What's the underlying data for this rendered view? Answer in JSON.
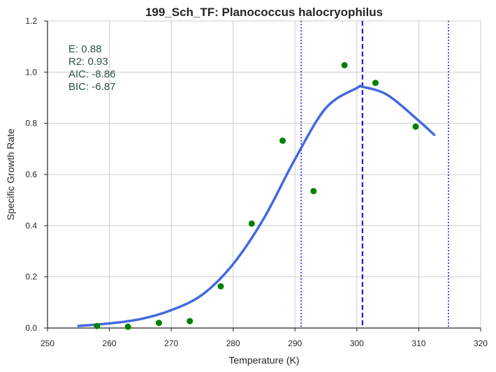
{
  "chart_data": {
    "type": "scatter",
    "title": "199_Sch_TF: Planococcus halocryophilus",
    "xlabel": "Temperature (K)",
    "ylabel": "Specific Growth Rate",
    "xlim": [
      250,
      320
    ],
    "ylim": [
      0.0,
      1.2
    ],
    "x_ticks": [
      "250",
      "260",
      "270",
      "280",
      "290",
      "300",
      "310",
      "320"
    ],
    "y_ticks": [
      "0.0",
      "0.2",
      "0.4",
      "0.6",
      "0.8",
      "1.0",
      "1.2"
    ],
    "grid": true,
    "points": {
      "x": [
        258,
        263,
        268,
        273,
        278,
        283,
        288,
        293,
        298,
        303,
        309.5
      ],
      "y": [
        0.008,
        0.005,
        0.02,
        0.027,
        0.163,
        0.408,
        0.732,
        0.535,
        1.027,
        0.958,
        0.787
      ],
      "color": "#008000"
    },
    "fitted_curve": {
      "x": [
        255,
        260,
        265,
        270,
        275,
        280,
        285,
        290,
        295,
        300,
        301,
        305,
        310,
        312.5
      ],
      "y": [
        0.008,
        0.018,
        0.035,
        0.07,
        0.13,
        0.25,
        0.43,
        0.66,
        0.86,
        0.938,
        0.942,
        0.91,
        0.81,
        0.755
      ],
      "color": "#4169e1"
    },
    "vertical_lines": [
      {
        "x": 291,
        "style": "dotted",
        "color": "#0000ff"
      },
      {
        "x": 300.9,
        "style": "dashed",
        "color": "#0000ff"
      },
      {
        "x": 314.8,
        "style": "dotted",
        "color": "#0000ff"
      }
    ],
    "stats": [
      "E:  0.88",
      "R2:  0.93",
      "AIC: -8.86",
      "BIC: -6.87"
    ]
  }
}
